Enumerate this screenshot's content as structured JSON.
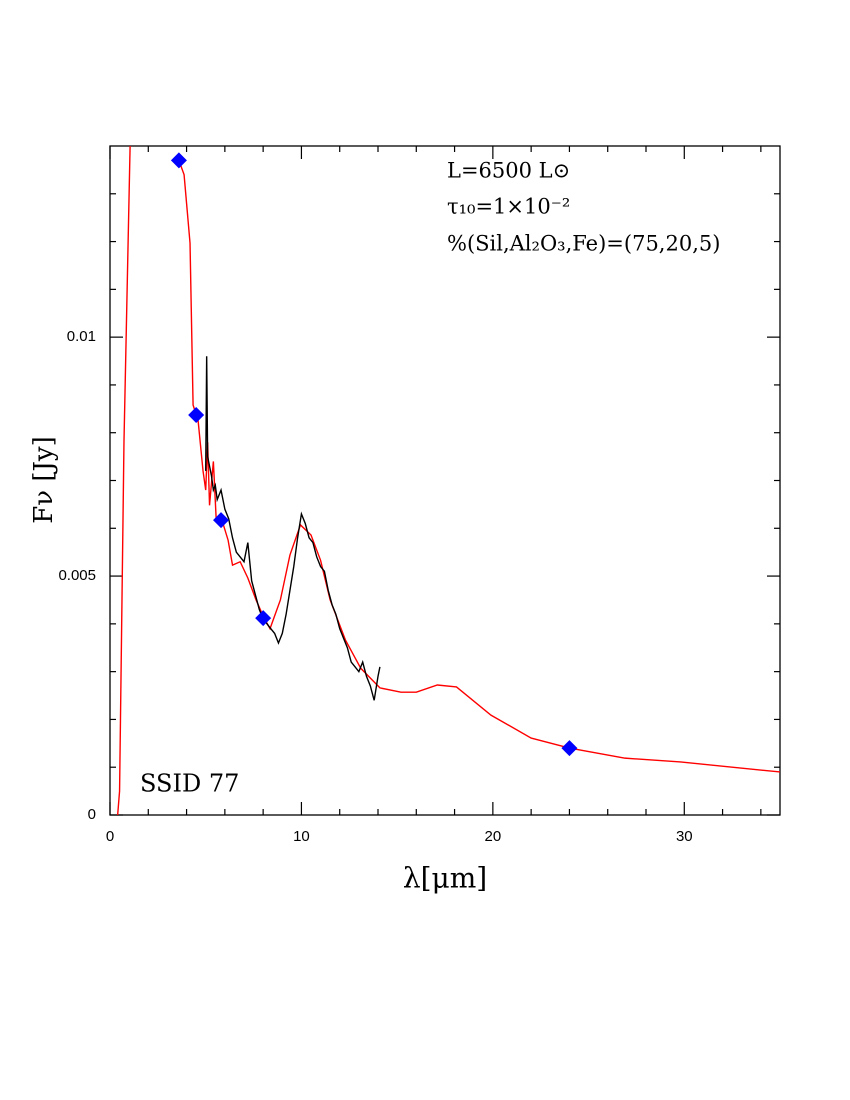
{
  "chart_data": {
    "type": "line",
    "xlabel": "λ[μm]",
    "ylabel": "Fν [Jy]",
    "annotations": [
      "L=6500 L⊙",
      "τ₁₀=1×10⁻²",
      "%(Sil,Al₂O₃,Fe)=(75,20,5)",
      "SSID 77"
    ],
    "xlim": [
      0,
      35
    ],
    "ylim": [
      0,
      0.014
    ],
    "xticks": [
      0,
      10,
      20,
      30
    ],
    "yticks": [
      0,
      0.005,
      0.01
    ],
    "xminorticks": [
      2,
      4,
      6,
      8,
      12,
      14,
      16,
      18,
      22,
      24,
      26,
      28,
      32,
      34
    ],
    "yminorticks": [
      0.001,
      0.002,
      0.003,
      0.004,
      0.006,
      0.007,
      0.008,
      0.009,
      0.011,
      0.012,
      0.013
    ],
    "series": [
      {
        "type": "line",
        "color": "#ff0000",
        "x": [
          0.4,
          0.5,
          0.73,
          1.05,
          null,
          3.6,
          3.87,
          4.18,
          4.34,
          4.6,
          4.86,
          5.0,
          5.1,
          5.2,
          5.4,
          5.55,
          5.85,
          6.17,
          6.4,
          6.8,
          7.2,
          7.63,
          8.05,
          8.36,
          8.9,
          9.4,
          9.95,
          10.5,
          11.0,
          11.5,
          12.3,
          13.1,
          14.1,
          15.2,
          16.0,
          17.1,
          18.1,
          19.9,
          22.0,
          24.0,
          26.9,
          29.8,
          35
        ],
        "values": [
          0,
          0.0005,
          0.0078,
          0.014,
          null,
          0.0137,
          0.0134,
          0.01197,
          0.00858,
          0.00826,
          0.0072,
          0.0068,
          0.0078,
          0.00648,
          0.0074,
          0.00617,
          0.00617,
          0.00575,
          0.00523,
          0.0053,
          0.00496,
          0.0045,
          0.00412,
          0.0039,
          0.0045,
          0.00544,
          0.00607,
          0.00586,
          0.00533,
          0.0045,
          0.00366,
          0.00307,
          0.00266,
          0.00257,
          0.00257,
          0.00272,
          0.00268,
          0.00209,
          0.00161,
          0.0014,
          0.00119,
          0.00111,
          0.0009
        ]
      },
      {
        "type": "line",
        "color": "#000000",
        "x": [
          5.0,
          5.05,
          5.1,
          5.2,
          5.3,
          5.4,
          5.5,
          5.6,
          5.8,
          6.0,
          6.2,
          6.4,
          6.6,
          6.8,
          7.0,
          7.2,
          7.4,
          7.6,
          7.8,
          8.0,
          8.2,
          8.4,
          8.6,
          8.8,
          9.0,
          9.2,
          9.4,
          9.6,
          9.8,
          10.0,
          10.2,
          10.4,
          10.6,
          10.8,
          11.0,
          11.2,
          11.4,
          11.6,
          11.8,
          12.0,
          12.2,
          12.4,
          12.6,
          12.8,
          13.0,
          13.2,
          13.4,
          13.6,
          13.8,
          14.0,
          14.1
        ],
        "values": [
          0.0072,
          0.0096,
          0.0075,
          0.0073,
          0.0071,
          0.0068,
          0.0069,
          0.0066,
          0.0068,
          0.0064,
          0.0062,
          0.0058,
          0.0055,
          0.0054,
          0.0053,
          0.0057,
          0.0049,
          0.0046,
          0.0043,
          0.0041,
          0.004,
          0.0039,
          0.0038,
          0.0036,
          0.0038,
          0.0042,
          0.0047,
          0.0052,
          0.0058,
          0.0063,
          0.0061,
          0.0058,
          0.0057,
          0.0054,
          0.0052,
          0.0051,
          0.0047,
          0.0044,
          0.0042,
          0.0039,
          0.0037,
          0.0035,
          0.0032,
          0.0031,
          0.003,
          0.0032,
          0.0029,
          0.0027,
          0.0024,
          0.0029,
          0.0031
        ]
      },
      {
        "type": "scatter",
        "color": "#0000ff",
        "x": [
          3.6,
          4.5,
          5.8,
          8.0,
          24
        ],
        "values": [
          0.0137,
          0.00837,
          0.00617,
          0.00412,
          0.0014
        ]
      }
    ]
  }
}
